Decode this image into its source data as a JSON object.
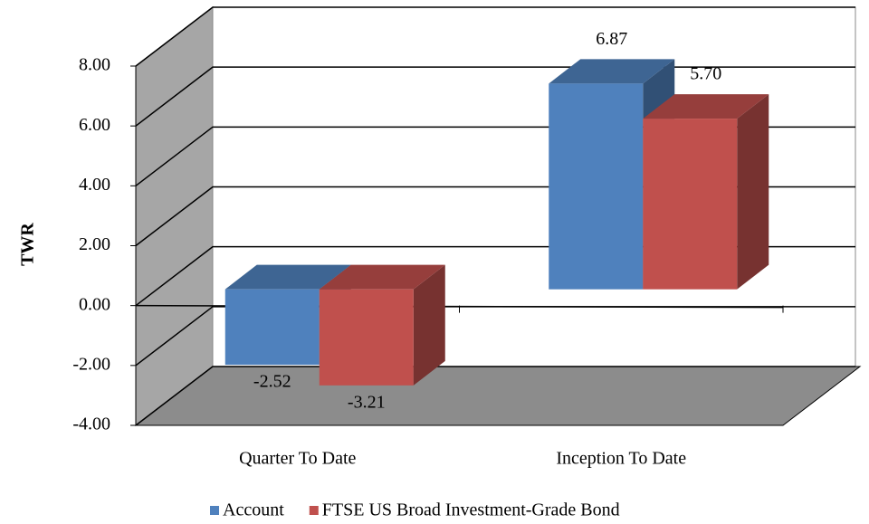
{
  "chart_data": {
    "type": "bar3d",
    "y_label": "TWR",
    "categories": [
      "Quarter To Date",
      "Inception To Date"
    ],
    "series": [
      {
        "name": "Account",
        "color": "#4f81bd",
        "values": [
          -2.52,
          6.87
        ],
        "value_labels": [
          "-2.52",
          "6.87"
        ]
      },
      {
        "name": "FTSE US Broad Investment-Grade Bond",
        "color": "#c0504d",
        "values": [
          -3.21,
          5.7
        ],
        "value_labels": [
          "-3.21",
          "5.70"
        ]
      }
    ],
    "ylim": [
      -4,
      8
    ],
    "yticks": [
      {
        "value": -4,
        "label": "-4.00"
      },
      {
        "value": -2,
        "label": "-2.00"
      },
      {
        "value": 0,
        "label": "0.00"
      },
      {
        "value": 2,
        "label": "2.00"
      },
      {
        "value": 4,
        "label": "4.00"
      },
      {
        "value": 6,
        "label": "6.00"
      },
      {
        "value": 8,
        "label": "8.00"
      }
    ],
    "grid": true,
    "legend": "bottom"
  }
}
